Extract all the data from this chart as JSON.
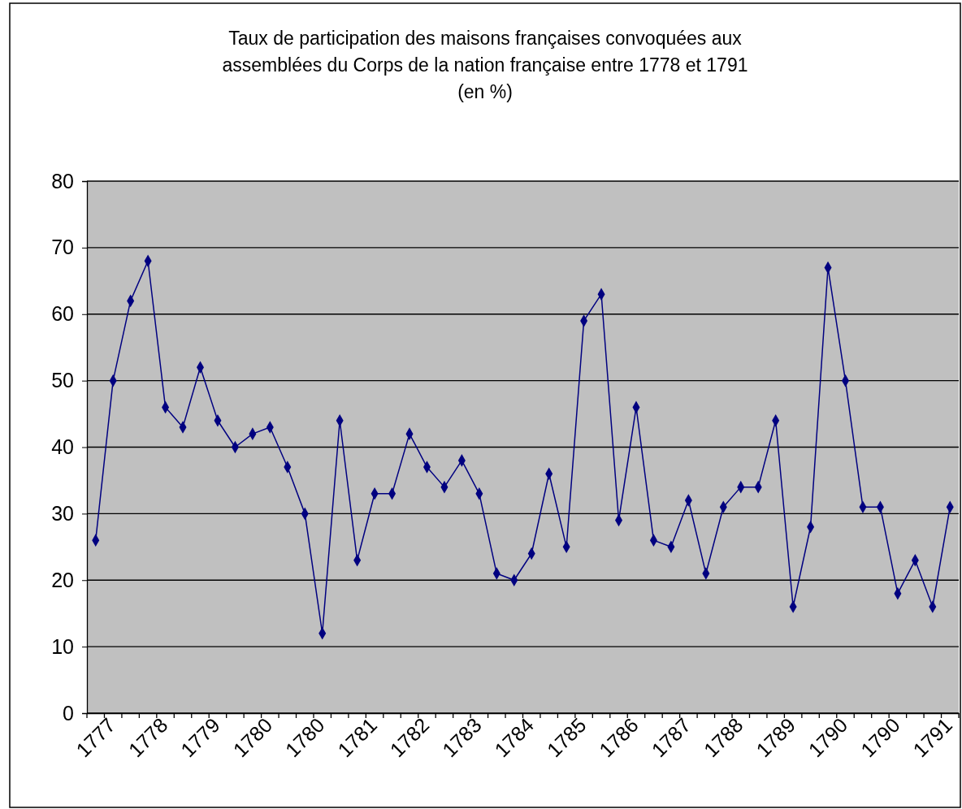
{
  "chart_data": {
    "type": "line",
    "title": "Taux de participation des maisons françaises convoquées aux\nassemblées du Corps de la nation française entre 1778 et 1791\n(en %)",
    "categories": [
      "1777",
      null,
      null,
      "1778",
      null,
      null,
      "1779",
      null,
      null,
      "1780",
      null,
      null,
      "1780",
      null,
      null,
      "1781",
      null,
      null,
      "1782",
      null,
      null,
      "1783",
      null,
      null,
      "1784",
      null,
      null,
      "1785",
      null,
      null,
      "1786",
      null,
      null,
      "1787",
      null,
      null,
      "1788",
      null,
      null,
      "1789",
      null,
      null,
      "1790",
      null,
      null,
      "1790",
      null,
      null,
      "1791",
      null
    ],
    "series": [
      {
        "color": "#000080",
        "values": [
          26,
          50,
          62,
          68,
          46,
          43,
          52,
          44,
          40,
          42,
          43,
          37,
          30,
          12,
          44,
          23,
          33,
          33,
          42,
          37,
          34,
          38,
          33,
          21,
          20,
          24,
          36,
          25,
          59,
          63,
          29,
          46,
          26,
          25,
          32,
          21,
          31,
          34,
          34,
          44,
          16,
          28,
          67,
          50,
          31,
          31,
          18,
          23,
          16,
          31
        ]
      }
    ],
    "ylim": [
      0,
      80
    ],
    "yticks": [
      0,
      10,
      20,
      30,
      40,
      50,
      60,
      70,
      80
    ],
    "grid": "y",
    "marker": "diamond",
    "line_style": "solid"
  }
}
